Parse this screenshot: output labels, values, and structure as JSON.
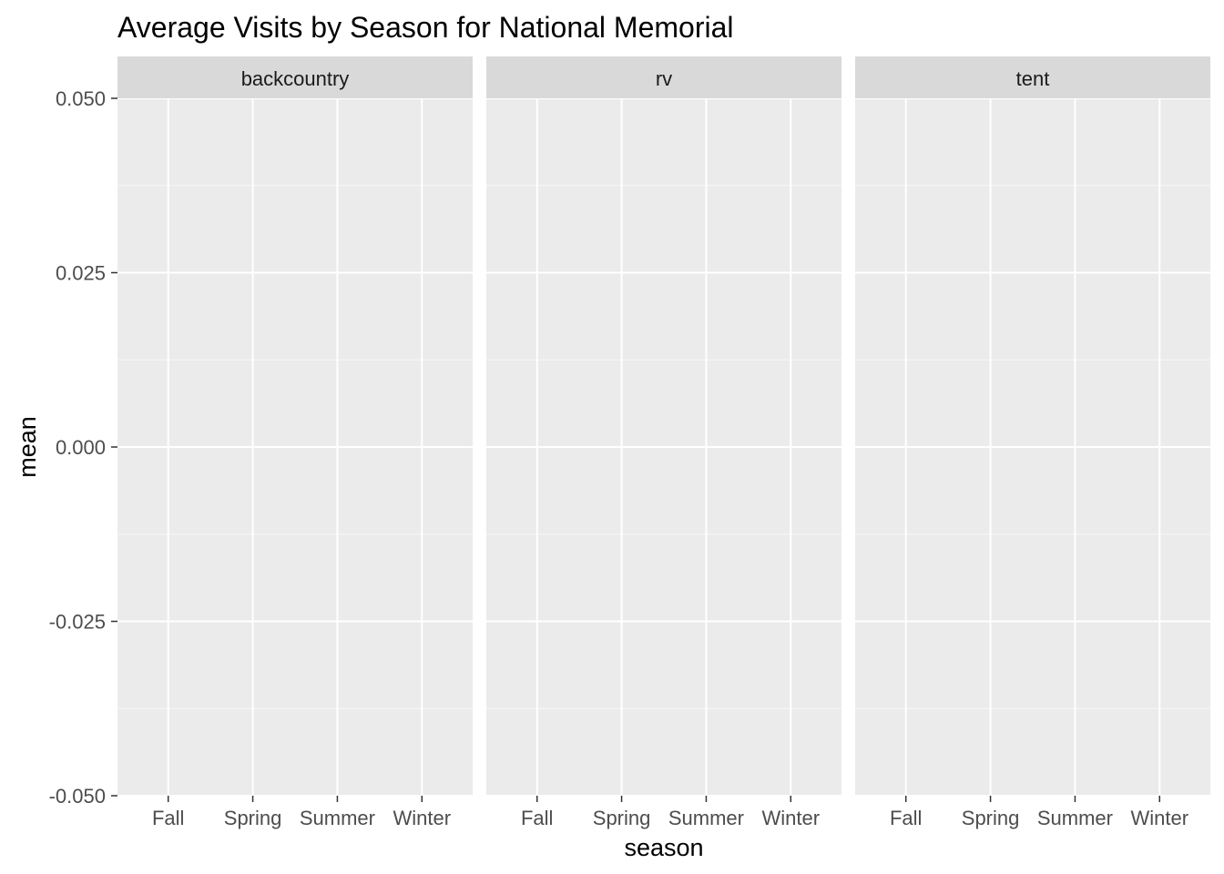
{
  "chart_data": {
    "type": "bar",
    "title": "Average Visits by Season for National Memorial",
    "xlabel": "season",
    "ylabel": "mean",
    "categories": [
      "Fall",
      "Spring",
      "Summer",
      "Winter"
    ],
    "facets": [
      "backcountry",
      "rv",
      "tent"
    ],
    "series": [],
    "ylim": [
      -0.05,
      0.05
    ],
    "yticks": [
      0.05,
      0.025,
      0.0,
      -0.025,
      -0.05
    ],
    "ytick_labels": [
      "0.050",
      "0.025",
      "0.000",
      "-0.025",
      "-0.050"
    ],
    "grid": true,
    "colors": {
      "panel_background": "#ebebeb",
      "strip_background": "#d9d9d9",
      "grid_major": "#ffffff",
      "grid_minor": "#f5f5f5",
      "tick_color": "#333333"
    }
  }
}
